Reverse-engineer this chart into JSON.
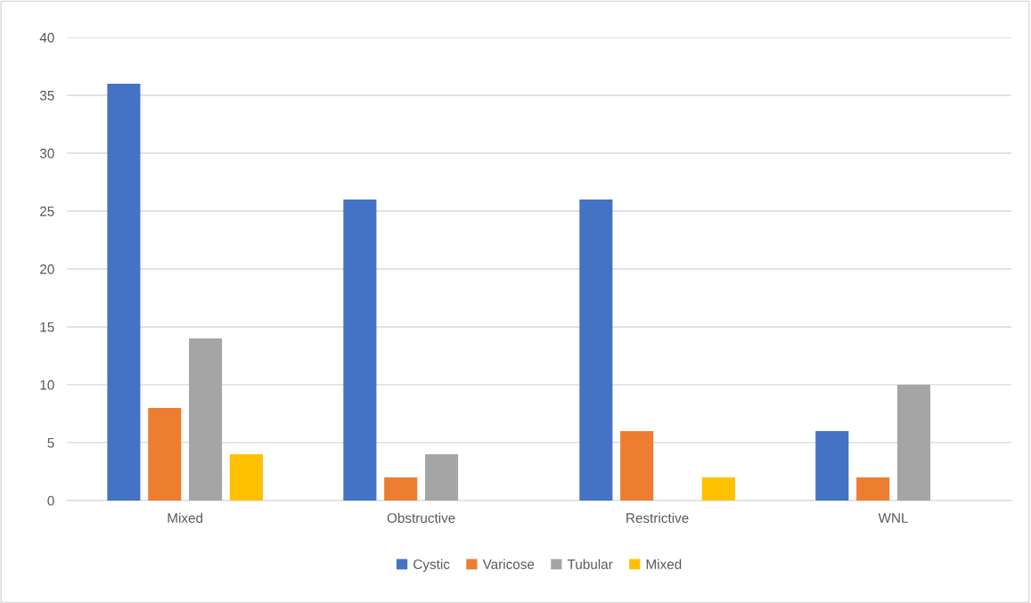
{
  "chart_data": {
    "type": "bar",
    "categories": [
      "Mixed",
      "Obstructive",
      "Restrictive",
      "WNL"
    ],
    "series": [
      {
        "name": "Cystic",
        "color": "#4472c4",
        "values": [
          36,
          26,
          26,
          6
        ]
      },
      {
        "name": "Varicose",
        "color": "#ed7d31",
        "values": [
          8,
          2,
          6,
          2
        ]
      },
      {
        "name": "Tubular",
        "color": "#a5a5a5",
        "values": [
          14,
          4,
          0,
          10
        ]
      },
      {
        "name": "Mixed",
        "color": "#ffc000",
        "values": [
          4,
          0,
          2,
          0
        ]
      }
    ],
    "ylim": [
      0,
      40
    ],
    "yticks": [
      0,
      5,
      10,
      15,
      20,
      25,
      30,
      35,
      40
    ],
    "grid": "y",
    "legend": "bottom"
  }
}
